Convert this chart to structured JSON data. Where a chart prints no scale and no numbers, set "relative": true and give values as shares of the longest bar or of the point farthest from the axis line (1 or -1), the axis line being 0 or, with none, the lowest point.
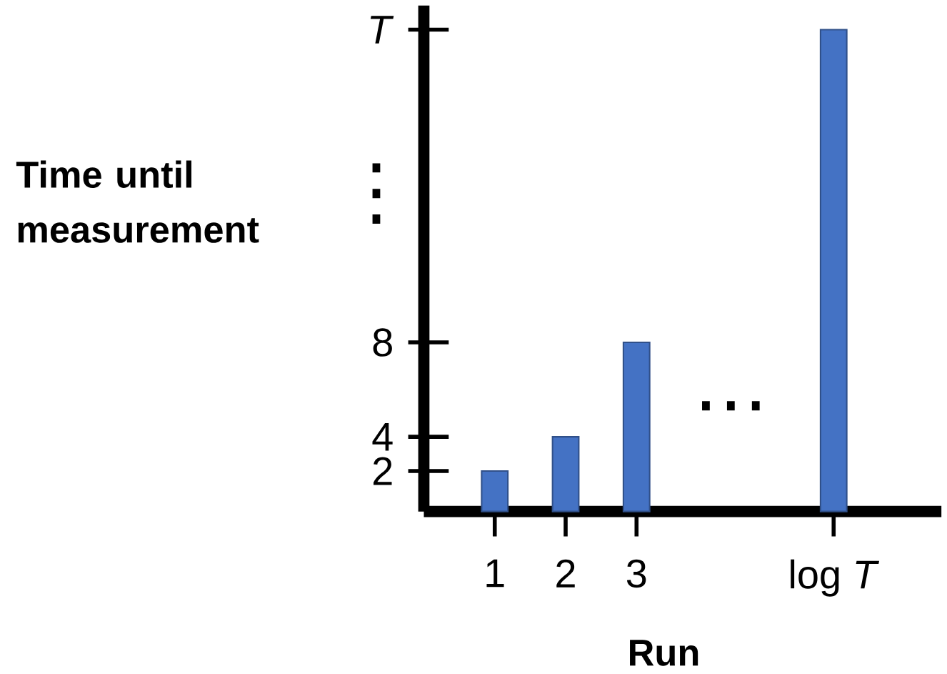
{
  "chart_data": {
    "type": "bar",
    "xlabel": "Run",
    "ylabel": "Time until measurement",
    "relative": true,
    "x": [
      1,
      2,
      3,
      5.78
    ],
    "values": [
      0.084,
      0.155,
      0.351,
      1.0
    ],
    "color": "#4472c4",
    "xlim": [
      0,
      7.3
    ],
    "xticks": [
      1,
      2,
      3,
      {
        "value": 5.78,
        "label": "log *T*"
      }
    ],
    "annotations": [
      "2",
      "4",
      "8",
      "*T*",
      "⋮",
      "⋯"
    ],
    "grid": false
  }
}
